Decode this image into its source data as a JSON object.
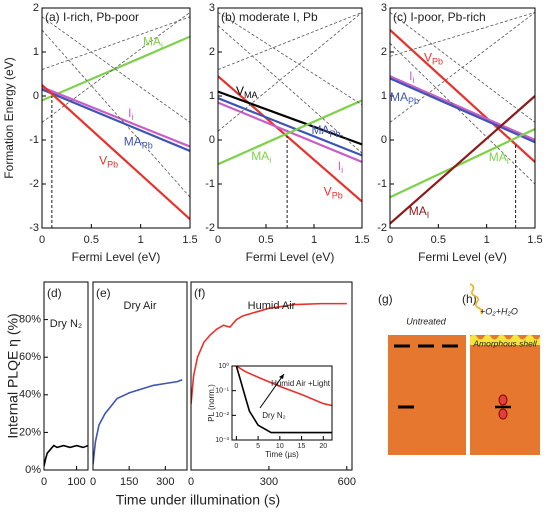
{
  "chart_data": [
    {
      "type": "line",
      "title": "(a) I-rich, Pb-poor",
      "xlabel": "Fermi Level (eV)",
      "ylabel": "Formation Energy (eV)",
      "x": [
        0,
        1.5
      ],
      "xlim": [
        0,
        1.5
      ],
      "xticks": [
        0.0,
        0.5,
        1.0,
        1.5
      ],
      "ylim": [
        -3,
        2
      ],
      "yticks": [
        -3,
        -2,
        -1,
        0,
        1,
        2
      ],
      "marker_x": 0.1,
      "series": [
        {
          "name": "MA",
          "sub": "i",
          "color": "#7ed14b",
          "values": [
            -0.1,
            1.35
          ]
        },
        {
          "name": "I",
          "sub": "i",
          "color": "#c85fc8",
          "values": [
            0.2,
            -1.15
          ]
        },
        {
          "name": "MA",
          "sub": "Pb",
          "color": "#3f55b5",
          "values": [
            0.15,
            -1.25
          ]
        },
        {
          "name": "V",
          "sub": "Pb",
          "color": "#e8312a",
          "values": [
            0.25,
            -2.8
          ]
        },
        {
          "color": "#555",
          "dash": true,
          "values": [
            1.8,
            -0.6
          ]
        },
        {
          "color": "#555",
          "dash": true,
          "values": [
            -0.6,
            1.9
          ]
        },
        {
          "color": "#555",
          "dash": true,
          "values": [
            0.6,
            1.8
          ]
        },
        {
          "color": "#555",
          "dash": true,
          "values": [
            1.5,
            -2.3
          ]
        }
      ]
    },
    {
      "type": "line",
      "title": "(b) moderate I, Pb",
      "xlabel": "Fermi Level (eV)",
      "x": [
        0,
        1.5
      ],
      "xlim": [
        0,
        1.5
      ],
      "xticks": [
        0.0,
        0.5,
        1.0,
        1.5
      ],
      "ylim": [
        -2,
        3
      ],
      "yticks": [
        -2,
        -1,
        0,
        1,
        2,
        3
      ],
      "marker_x": 0.72,
      "series": [
        {
          "name": "V",
          "sub": "Pb",
          "color": "#e8312a",
          "values": [
            1.45,
            -1.4
          ]
        },
        {
          "name": "V",
          "sub": "MA",
          "color": "#000000",
          "values": [
            1.1,
            -0.1
          ]
        },
        {
          "name": "MA",
          "sub": "Pb",
          "color": "#3f55b5",
          "values": [
            0.95,
            -0.35
          ]
        },
        {
          "name": "I",
          "sub": "i",
          "color": "#c85fc8",
          "values": [
            0.85,
            -0.5
          ]
        },
        {
          "name": "MA",
          "sub": "i",
          "color": "#7ed14b",
          "values": [
            -0.55,
            0.9
          ]
        },
        {
          "color": "#555",
          "dash": true,
          "values": [
            2.6,
            -0.3
          ]
        },
        {
          "color": "#555",
          "dash": true,
          "values": [
            0.2,
            2.9
          ]
        },
        {
          "color": "#555",
          "dash": true,
          "values": [
            1.6,
            2.9
          ]
        },
        {
          "color": "#555",
          "dash": true,
          "values": [
            2.9,
            0.8
          ]
        }
      ]
    },
    {
      "type": "line",
      "title": "(c) I-poor, Pb-rich",
      "xlabel": "Fermi Level (eV)",
      "x": [
        0,
        1.5
      ],
      "xlim": [
        0,
        1.5
      ],
      "xticks": [
        0.0,
        0.5,
        1.0,
        1.5
      ],
      "ylim": [
        -2,
        3
      ],
      "yticks": [
        -2,
        -1,
        0,
        1,
        2,
        3
      ],
      "marker_x": 1.3,
      "series": [
        {
          "name": "V",
          "sub": "Pb",
          "color": "#e8312a",
          "values": [
            2.5,
            -0.5
          ]
        },
        {
          "name": "I",
          "sub": "i",
          "color": "#c85fc8",
          "values": [
            1.45,
            0.0
          ]
        },
        {
          "name": "MA",
          "sub": "Pb",
          "color": "#3f55b5",
          "values": [
            1.4,
            -0.05
          ]
        },
        {
          "name": "MA",
          "sub": "i",
          "color": "#7ed14b",
          "values": [
            -1.3,
            0.25
          ]
        },
        {
          "name": "MA",
          "sub": "I",
          "color": "#8b1a1a",
          "values": [
            -1.9,
            1.0
          ]
        },
        {
          "color": "#555",
          "dash": true,
          "values": [
            2.9,
            0.4
          ]
        },
        {
          "color": "#555",
          "dash": true,
          "values": [
            0.4,
            2.9
          ]
        },
        {
          "color": "#555",
          "dash": true,
          "values": [
            1.9,
            2.9
          ]
        },
        {
          "color": "#555",
          "dash": true,
          "values": [
            2.2,
            -1.0
          ]
        }
      ]
    },
    {
      "type": "line",
      "title": "(d)",
      "annotation": "Dry N₂",
      "ylabel": "Internal PLQE η (%)",
      "xlim": [
        0,
        135
      ],
      "xticks": [
        0,
        100
      ],
      "ylim": [
        0,
        100
      ],
      "yticks": [
        {
          "value": 0,
          "label": "0%"
        },
        {
          "value": 20,
          "label": "20%"
        },
        {
          "value": 40,
          "label": "40%"
        },
        {
          "value": 60,
          "label": "60%"
        },
        {
          "value": 80,
          "label": "80%"
        }
      ],
      "series": [
        {
          "color": "#000000",
          "x": [
            0,
            5,
            10,
            20,
            30,
            40,
            60,
            80,
            100,
            120,
            135
          ],
          "values": [
            2,
            6,
            9,
            11,
            13,
            12,
            13,
            12,
            13,
            12,
            13
          ]
        }
      ]
    },
    {
      "type": "line",
      "title": "(e)",
      "annotation": "Dry Air",
      "xlabel": "Time under illumination (s)",
      "xlim": [
        0,
        390
      ],
      "xticks": [
        0,
        150,
        300
      ],
      "ylim": [
        0,
        100
      ],
      "series": [
        {
          "color": "#3f55b5",
          "x": [
            0,
            10,
            25,
            50,
            75,
            100,
            150,
            200,
            250,
            300,
            350,
            370
          ],
          "values": [
            3,
            15,
            24,
            30,
            34,
            38,
            41,
            43,
            45,
            46,
            47,
            48
          ]
        }
      ]
    },
    {
      "type": "line",
      "title": "(f)",
      "annotation": "Humid Air",
      "xlim": [
        0,
        620
      ],
      "xticks": [
        0,
        300,
        600
      ],
      "ylim": [
        0,
        100
      ],
      "series": [
        {
          "color": "#e8312a",
          "x": [
            0,
            10,
            25,
            50,
            75,
            100,
            125,
            150,
            175,
            200,
            300,
            400,
            500,
            600
          ],
          "values": [
            35,
            50,
            60,
            68,
            72,
            75,
            77,
            76,
            80,
            82,
            86,
            88,
            88.5,
            88.5
          ]
        }
      ]
    },
    {
      "type": "line",
      "xlabel": "Time (µs)",
      "ylabel": "PL (norm.)",
      "log_y": true,
      "xlim": [
        -1,
        22
      ],
      "xticks": [
        0,
        5,
        10,
        15,
        20
      ],
      "ylim": [
        0.001,
        1
      ],
      "yticks": [
        {
          "value": 1,
          "label": "10⁰"
        },
        {
          "value": 0.1,
          "label": "10⁻¹"
        },
        {
          "value": 0.01,
          "label": "10⁻²"
        },
        {
          "value": 0.001,
          "label": "10⁻³"
        }
      ],
      "series": [
        {
          "name": "Humid Air +Light",
          "color": "#e8312a",
          "x": [
            0,
            2,
            5,
            10,
            15,
            20,
            22
          ],
          "values": [
            1,
            0.6,
            0.35,
            0.15,
            0.07,
            0.03,
            0.025
          ]
        },
        {
          "name": "Dry N₂",
          "color": "#000000",
          "x": [
            0,
            1,
            2,
            3,
            5,
            8,
            12,
            20,
            22
          ],
          "values": [
            1,
            0.25,
            0.06,
            0.015,
            0.004,
            0.002,
            0.002,
            0.002,
            0.002
          ]
        }
      ]
    }
  ],
  "diagram": {
    "panels": [
      {
        "label": "(g)",
        "caption": "Untreated"
      },
      {
        "label": "(h)",
        "annotation": "+O₂+H₂O",
        "caption": "Amorphous shell"
      }
    ]
  }
}
